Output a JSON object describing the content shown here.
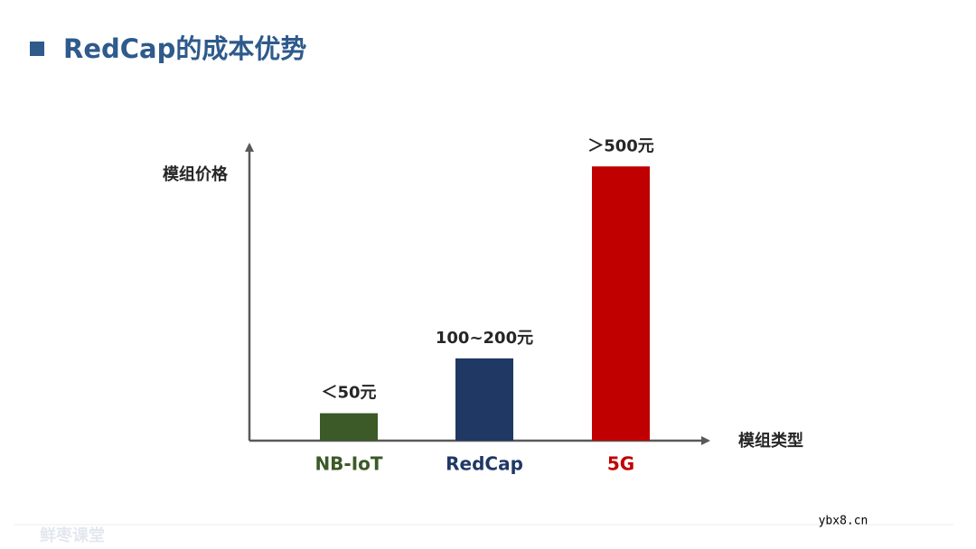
{
  "chart_data": {
    "type": "bar",
    "title": "RedCap的成本优势",
    "y_label": "模组价格",
    "x_label": "模组类型",
    "categories": [
      "NB-IoT",
      "RedCap",
      "5G"
    ],
    "values": [
      50,
      150,
      500
    ],
    "value_labels": [
      "＜50元",
      "100~200元",
      "＞500元"
    ],
    "colors": [
      "#3b5a27",
      "#1f3864",
      "#c00000"
    ],
    "ylim": [
      0,
      540
    ]
  },
  "watermarks": [
    "鲜枣课堂",
    "ybx8.cn"
  ]
}
